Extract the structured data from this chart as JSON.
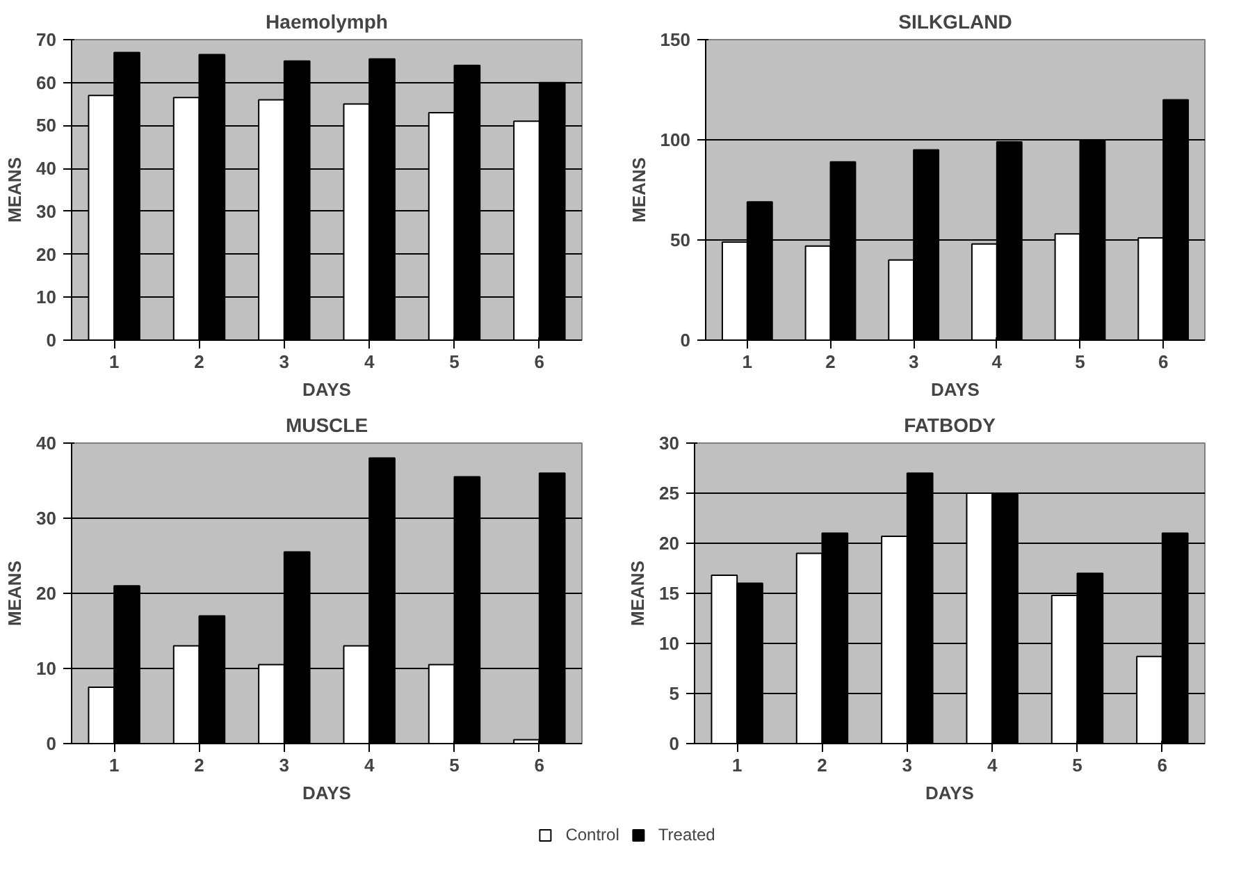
{
  "chart_data": [
    {
      "type": "bar",
      "title": "Haemolymph",
      "xlabel": "DAYS",
      "ylabel": "MEANS",
      "categories": [
        "1",
        "2",
        "3",
        "4",
        "5",
        "6"
      ],
      "ylim": [
        0,
        70
      ],
      "yticks": [
        0,
        10,
        20,
        30,
        40,
        50,
        60,
        70
      ],
      "grid": "y",
      "series": [
        {
          "color": "#ffffff",
          "values": [
            57,
            56.5,
            56,
            55,
            53,
            51
          ]
        },
        {
          "color": "#000000",
          "values": [
            67,
            66.5,
            65,
            65.5,
            64,
            60
          ]
        }
      ]
    },
    {
      "type": "bar",
      "title": "SILKGLAND",
      "xlabel": "DAYS",
      "ylabel": "MEANS",
      "categories": [
        "1",
        "2",
        "3",
        "4",
        "5",
        "6"
      ],
      "ylim": [
        0,
        150
      ],
      "yticks": [
        0,
        50,
        100,
        150
      ],
      "grid": "y",
      "series": [
        {
          "color": "#ffffff",
          "values": [
            49,
            47,
            40,
            48,
            53,
            51
          ]
        },
        {
          "color": "#000000",
          "values": [
            69,
            89,
            95,
            99,
            100,
            120
          ]
        }
      ]
    },
    {
      "type": "bar",
      "title": "MUSCLE",
      "xlabel": "DAYS",
      "ylabel": "MEANS",
      "categories": [
        "1",
        "2",
        "3",
        "4",
        "5",
        "6"
      ],
      "ylim": [
        0,
        40
      ],
      "yticks": [
        0,
        10,
        20,
        30,
        40
      ],
      "grid": "y",
      "series": [
        {
          "color": "#ffffff",
          "values": [
            7.5,
            13,
            10.5,
            13,
            10.5,
            0.5
          ]
        },
        {
          "color": "#000000",
          "values": [
            21,
            17,
            25.5,
            38,
            35.5,
            36
          ]
        }
      ]
    },
    {
      "type": "bar",
      "title": "FATBODY",
      "xlabel": "DAYS",
      "ylabel": "MEANS",
      "categories": [
        "1",
        "2",
        "3",
        "4",
        "5",
        "6"
      ],
      "ylim": [
        0,
        30
      ],
      "yticks": [
        0,
        5,
        10,
        15,
        20,
        25,
        30
      ],
      "grid": "y",
      "legend": "bottom",
      "series": [
        {
          "name": "Control",
          "color": "#ffffff",
          "values": [
            16.8,
            19,
            20.7,
            25,
            14.8,
            8.7
          ]
        },
        {
          "name": "Treated",
          "color": "#000000",
          "values": [
            16,
            21,
            27,
            25,
            17,
            21
          ]
        }
      ]
    }
  ]
}
